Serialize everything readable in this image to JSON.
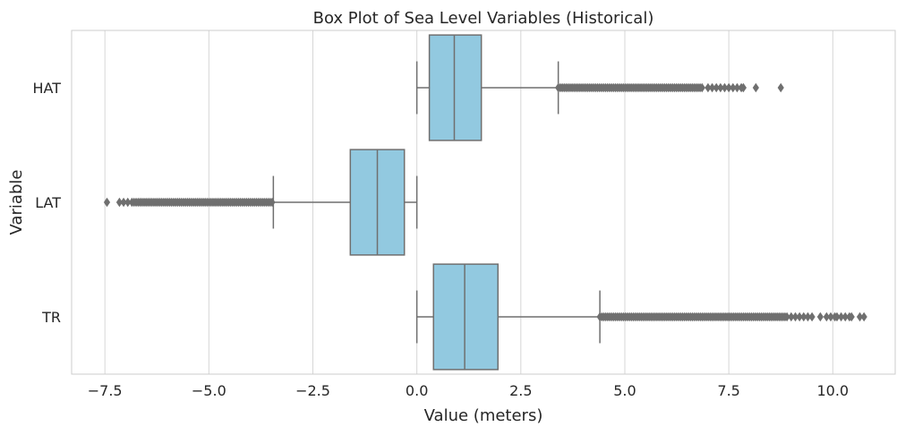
{
  "chart_data": {
    "type": "boxplot",
    "title": "Box Plot of Sea Level Variables (Historical)",
    "xlabel": "Value (meters)",
    "ylabel": "Variable",
    "xlim": [
      -8.3,
      11.5
    ],
    "xticks": [
      -7.5,
      -5.0,
      -2.5,
      0.0,
      2.5,
      5.0,
      7.5,
      10.0
    ],
    "xtick_labels": [
      "−7.5",
      "−5.0",
      "−2.5",
      "0.0",
      "2.5",
      "5.0",
      "7.5",
      "10.0"
    ],
    "grid": true,
    "box_color": "#92c9e0",
    "line_color": "#6f6f6f",
    "categories": [
      "HAT",
      "LAT",
      "TR"
    ],
    "boxes": [
      {
        "category": "HAT",
        "whisker_low": 0.0,
        "q1": 0.3,
        "median": 0.9,
        "q3": 1.55,
        "whisker_high": 3.4,
        "outliers_dense_range": [
          3.4,
          6.9
        ],
        "outliers": [
          7.0,
          7.1,
          7.2,
          7.3,
          7.4,
          7.5,
          7.6,
          7.7,
          7.8,
          7.85,
          8.15,
          8.75
        ]
      },
      {
        "category": "LAT",
        "whisker_low": -3.45,
        "q1": -1.6,
        "median": -0.95,
        "q3": -0.3,
        "whisker_high": 0.0,
        "outliers_dense_range": [
          -6.7,
          -3.45
        ],
        "outliers": [
          -7.45,
          -7.15,
          -7.05,
          -6.95,
          -6.85,
          -6.8,
          -6.75
        ]
      },
      {
        "category": "TR",
        "whisker_low": 0.0,
        "q1": 0.4,
        "median": 1.15,
        "q3": 1.95,
        "whisker_high": 4.4,
        "outliers_dense_range": [
          4.4,
          8.9
        ],
        "outliers": [
          9.0,
          9.1,
          9.2,
          9.3,
          9.4,
          9.5,
          9.7,
          9.85,
          9.95,
          10.05,
          10.1,
          10.2,
          10.3,
          10.4,
          10.45,
          10.65,
          10.75
        ]
      }
    ]
  }
}
